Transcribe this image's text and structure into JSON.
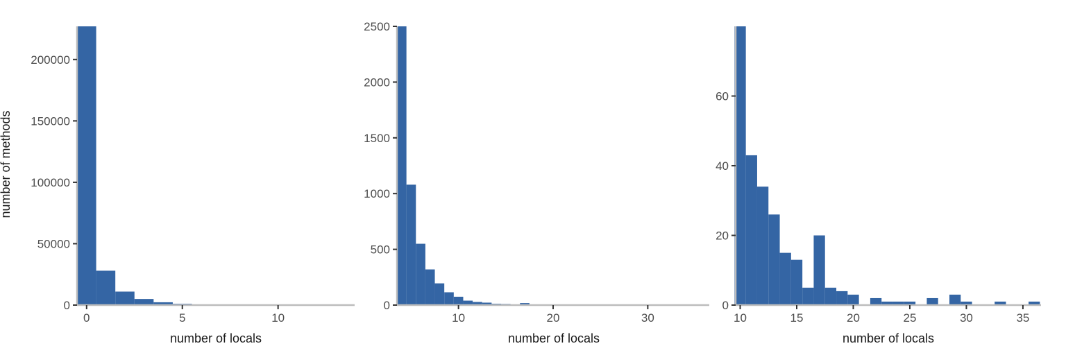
{
  "chart_data": [
    {
      "type": "bar",
      "xlabel": "number of locals",
      "ylabel": "number of methods",
      "xlim": [
        -0.5,
        14
      ],
      "ylim": [
        0,
        227000
      ],
      "xticks": [
        0,
        5,
        10
      ],
      "yticks": [
        0,
        50000,
        100000,
        150000,
        200000
      ],
      "bin_width": 1,
      "bins": [
        {
          "x": 0,
          "value": 227000
        },
        {
          "x": 1,
          "value": 28000
        },
        {
          "x": 2,
          "value": 11000
        },
        {
          "x": 3,
          "value": 5000
        },
        {
          "x": 4,
          "value": 2300
        },
        {
          "x": 5,
          "value": 1050
        },
        {
          "x": 6,
          "value": 520
        },
        {
          "x": 7,
          "value": 250
        },
        {
          "x": 8,
          "value": 120
        },
        {
          "x": 9,
          "value": 60
        },
        {
          "x": 10,
          "value": 35
        },
        {
          "x": 11,
          "value": 20
        },
        {
          "x": 12,
          "value": 12
        },
        {
          "x": 13,
          "value": 8
        }
      ],
      "color": "#3465a4"
    },
    {
      "type": "bar",
      "xlabel": "number of locals",
      "ylabel": "",
      "xlim": [
        3.5,
        36.5
      ],
      "ylim": [
        0,
        2500
      ],
      "xticks": [
        10,
        20,
        30
      ],
      "yticks": [
        0,
        500,
        1000,
        1500,
        2000,
        2500
      ],
      "bin_width": 1,
      "bins": [
        {
          "x": 4,
          "value": 2500
        },
        {
          "x": 5,
          "value": 1080
        },
        {
          "x": 6,
          "value": 550
        },
        {
          "x": 7,
          "value": 320
        },
        {
          "x": 8,
          "value": 195
        },
        {
          "x": 9,
          "value": 115
        },
        {
          "x": 10,
          "value": 75
        },
        {
          "x": 11,
          "value": 40
        },
        {
          "x": 12,
          "value": 28
        },
        {
          "x": 13,
          "value": 22
        },
        {
          "x": 14,
          "value": 12
        },
        {
          "x": 15,
          "value": 10
        },
        {
          "x": 16,
          "value": 5
        },
        {
          "x": 17,
          "value": 18
        },
        {
          "x": 18,
          "value": 4
        },
        {
          "x": 19,
          "value": 3
        },
        {
          "x": 20,
          "value": 3
        },
        {
          "x": 21,
          "value": 1
        },
        {
          "x": 22,
          "value": 2
        },
        {
          "x": 23,
          "value": 1
        },
        {
          "x": 24,
          "value": 1
        },
        {
          "x": 25,
          "value": 1
        },
        {
          "x": 26,
          "value": 1
        },
        {
          "x": 27,
          "value": 2
        },
        {
          "x": 29,
          "value": 3
        },
        {
          "x": 30,
          "value": 1
        },
        {
          "x": 33,
          "value": 1
        },
        {
          "x": 36,
          "value": 1
        }
      ],
      "color": "#3465a4"
    },
    {
      "type": "bar",
      "xlabel": "number of locals",
      "ylabel": "",
      "xlim": [
        9.6,
        36.6
      ],
      "ylim": [
        0,
        80
      ],
      "xticks": [
        10,
        15,
        20,
        25,
        30,
        35
      ],
      "yticks": [
        0,
        20,
        40,
        60
      ],
      "bin_width": 1,
      "bins": [
        {
          "x": 10,
          "value": 80
        },
        {
          "x": 11,
          "value": 43
        },
        {
          "x": 12,
          "value": 34
        },
        {
          "x": 13,
          "value": 26
        },
        {
          "x": 14,
          "value": 15
        },
        {
          "x": 15,
          "value": 13
        },
        {
          "x": 16,
          "value": 5
        },
        {
          "x": 17,
          "value": 20
        },
        {
          "x": 18,
          "value": 5
        },
        {
          "x": 19,
          "value": 4
        },
        {
          "x": 20,
          "value": 3
        },
        {
          "x": 22,
          "value": 2
        },
        {
          "x": 23,
          "value": 1
        },
        {
          "x": 24,
          "value": 1
        },
        {
          "x": 25,
          "value": 1
        },
        {
          "x": 27,
          "value": 2
        },
        {
          "x": 29,
          "value": 3
        },
        {
          "x": 30,
          "value": 1
        },
        {
          "x": 33,
          "value": 1
        },
        {
          "x": 36,
          "value": 1
        }
      ],
      "color": "#3465a4"
    }
  ]
}
